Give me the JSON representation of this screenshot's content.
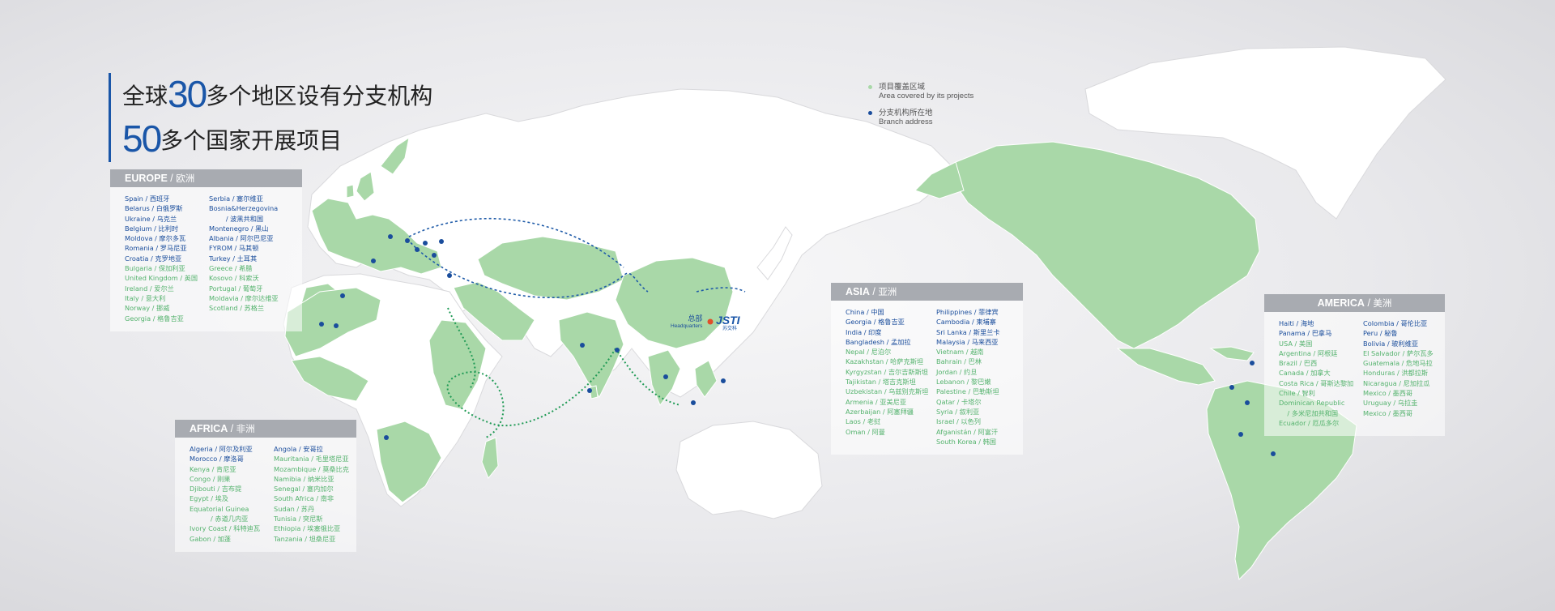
{
  "headline": {
    "line1_pre": "全球",
    "line1_num": "30",
    "line1_post": "多个地区设有分支机构",
    "line2_num": "50",
    "line2_post": "多个国家开展项目"
  },
  "legend": {
    "covered_zh": "项目覆盖区域",
    "covered_en": "Area covered by its projects",
    "covered_color": "#a9d8a8",
    "branch_zh": "分支机构所在地",
    "branch_en": "Branch address",
    "branch_color": "#1a4d9c"
  },
  "headquarters": {
    "zh": "总部",
    "en": "Headquarters",
    "logo": "JSTI",
    "logo_sub": "苏交科"
  },
  "colors": {
    "branch_text": "#1a4d9c",
    "project_text": "#55b36e",
    "panel_header": "#a8abb1"
  },
  "regions": {
    "europe": {
      "en": "EUROPE",
      "zh": "欧洲",
      "col1": [
        {
          "t": "Spain / 西班牙",
          "c": "b"
        },
        {
          "t": "Belarus / 白俄罗斯",
          "c": "b"
        },
        {
          "t": "Ukraine / 乌克兰",
          "c": "b"
        },
        {
          "t": "Belgium / 比利时",
          "c": "b"
        },
        {
          "t": "Moldova / 摩尔多瓦",
          "c": "b"
        },
        {
          "t": "Romania / 罗马尼亚",
          "c": "b"
        },
        {
          "t": "Croatia / 克罗地亚",
          "c": "b"
        },
        {
          "t": "Bulgaria / 保加利亚",
          "c": "g"
        },
        {
          "t": "United Kingdom / 英国",
          "c": "g"
        },
        {
          "t": "Ireland / 爱尔兰",
          "c": "g"
        },
        {
          "t": "Italy / 意大利",
          "c": "g"
        },
        {
          "t": "Norway / 挪威",
          "c": "g"
        },
        {
          "t": "Georgia / 格鲁吉亚",
          "c": "g"
        }
      ],
      "col2": [
        {
          "t": "Serbia / 塞尔维亚",
          "c": "b"
        },
        {
          "t": "Bosnia&Herzegovina",
          "c": "b"
        },
        {
          "t": "        / 波黑共和国",
          "c": "b"
        },
        {
          "t": "Montenegro / 黑山",
          "c": "b"
        },
        {
          "t": "Albania / 阿尔巴尼亚",
          "c": "b"
        },
        {
          "t": "FYROM / 马其顿",
          "c": "b"
        },
        {
          "t": "Turkey / 土耳其",
          "c": "b"
        },
        {
          "t": "Greece / 希腊",
          "c": "g"
        },
        {
          "t": "Kosovo / 科索沃",
          "c": "g"
        },
        {
          "t": "Portugal / 葡萄牙",
          "c": "g"
        },
        {
          "t": "Moldavia / 摩尔达维亚",
          "c": "g"
        },
        {
          "t": "Scotland / 苏格兰",
          "c": "g"
        }
      ]
    },
    "africa": {
      "en": "AFRICA",
      "zh": "非洲",
      "col1": [
        {
          "t": "Algeria / 阿尔及利亚",
          "c": "b"
        },
        {
          "t": "Morocco / 摩洛哥",
          "c": "b"
        },
        {
          "t": "Kenya / 肯尼亚",
          "c": "g"
        },
        {
          "t": "Congo / 刚果",
          "c": "g"
        },
        {
          "t": "Djibouti / 吉布提",
          "c": "g"
        },
        {
          "t": "Egypt / 埃及",
          "c": "g"
        },
        {
          "t": "Equatorial Guinea",
          "c": "g"
        },
        {
          "t": "          / 赤道几内亚",
          "c": "g"
        },
        {
          "t": "Ivory Coast / 科特迪瓦",
          "c": "g"
        },
        {
          "t": "Gabon / 加蓬",
          "c": "g"
        }
      ],
      "col2": [
        {
          "t": "Angola / 安哥拉",
          "c": "b"
        },
        {
          "t": "Mauritania / 毛里塔尼亚",
          "c": "g"
        },
        {
          "t": "Mozambique / 莫桑比克",
          "c": "g"
        },
        {
          "t": "Namibia / 纳米比亚",
          "c": "g"
        },
        {
          "t": "Senegal / 塞内加尔",
          "c": "g"
        },
        {
          "t": "South Africa / 南非",
          "c": "g"
        },
        {
          "t": "Sudan / 苏丹",
          "c": "g"
        },
        {
          "t": "Tunisia / 突尼斯",
          "c": "g"
        },
        {
          "t": "Ethiopia / 埃塞俄比亚",
          "c": "g"
        },
        {
          "t": "Tanzania / 坦桑尼亚",
          "c": "g"
        }
      ]
    },
    "asia": {
      "en": "ASIA",
      "zh": "亚洲",
      "col1": [
        {
          "t": "China / 中国",
          "c": "b"
        },
        {
          "t": "Georgia / 格鲁吉亚",
          "c": "b"
        },
        {
          "t": "India / 印度",
          "c": "b"
        },
        {
          "t": "Bangladesh / 孟加拉",
          "c": "b"
        },
        {
          "t": "Nepal / 尼泊尔",
          "c": "g"
        },
        {
          "t": "Kazakhstan / 哈萨克斯坦",
          "c": "g"
        },
        {
          "t": "Kyrgyzstan / 吉尔吉斯斯坦",
          "c": "g"
        },
        {
          "t": "Tajikistan / 塔吉克斯坦",
          "c": "g"
        },
        {
          "t": "Uzbekistan / 乌兹别克斯坦",
          "c": "g"
        },
        {
          "t": "Armenia / 亚美尼亚",
          "c": "g"
        },
        {
          "t": "Azerbaijan / 阿塞拜疆",
          "c": "g"
        },
        {
          "t": "Laos / 老挝",
          "c": "g"
        },
        {
          "t": "Oman / 阿曼",
          "c": "g"
        }
      ],
      "col2": [
        {
          "t": "Philippines / 菲律宾",
          "c": "b"
        },
        {
          "t": "Cambodia / 柬埔寨",
          "c": "b"
        },
        {
          "t": "Sri Lanka / 斯里兰卡",
          "c": "b"
        },
        {
          "t": "Malaysia / 马来西亚",
          "c": "b"
        },
        {
          "t": "Vietnam / 越南",
          "c": "g"
        },
        {
          "t": "Bahrain / 巴林",
          "c": "g"
        },
        {
          "t": "Jordan / 约旦",
          "c": "g"
        },
        {
          "t": "Lebanon / 黎巴嫩",
          "c": "g"
        },
        {
          "t": "Palestine / 巴勒斯坦",
          "c": "g"
        },
        {
          "t": "Qatar / 卡塔尔",
          "c": "g"
        },
        {
          "t": "Syria / 叙利亚",
          "c": "g"
        },
        {
          "t": "Israel / 以色列",
          "c": "g"
        },
        {
          "t": "Afganistán / 阿富汗",
          "c": "g"
        },
        {
          "t": "South Korea / 韩国",
          "c": "g"
        }
      ]
    },
    "america": {
      "en": "AMERICA",
      "zh": "美洲",
      "col1": [
        {
          "t": "Haiti / 海地",
          "c": "b"
        },
        {
          "t": "Panama / 巴拿马",
          "c": "b"
        },
        {
          "t": "USA / 美国",
          "c": "g"
        },
        {
          "t": "Argentina / 阿根廷",
          "c": "g"
        },
        {
          "t": "Brazil / 巴西",
          "c": "g"
        },
        {
          "t": "Canada / 加拿大",
          "c": "g"
        },
        {
          "t": "Costa Rica / 哥斯达黎加",
          "c": "g"
        },
        {
          "t": "Chile / 智利",
          "c": "g"
        },
        {
          "t": "Dominican Republic",
          "c": "g"
        },
        {
          "t": "    / 多米尼加共和国",
          "c": "g"
        },
        {
          "t": "Ecuador / 厄瓜多尔",
          "c": "g"
        }
      ],
      "col2": [
        {
          "t": "Colombia / 哥伦比亚",
          "c": "b"
        },
        {
          "t": "Peru / 秘鲁",
          "c": "b"
        },
        {
          "t": "Bolivia / 玻利维亚",
          "c": "b"
        },
        {
          "t": "El Salvador / 萨尔瓦多",
          "c": "g"
        },
        {
          "t": "Guatemala / 危地马拉",
          "c": "g"
        },
        {
          "t": "Honduras / 洪都拉斯",
          "c": "g"
        },
        {
          "t": "Nicaragua / 尼加拉瓜",
          "c": "g"
        },
        {
          "t": "Mexico / 墨西哥",
          "c": "g"
        },
        {
          "t": "Uruguay / 乌拉圭",
          "c": "g"
        },
        {
          "t": "Mexico / 墨西哥",
          "c": "g"
        }
      ]
    }
  }
}
